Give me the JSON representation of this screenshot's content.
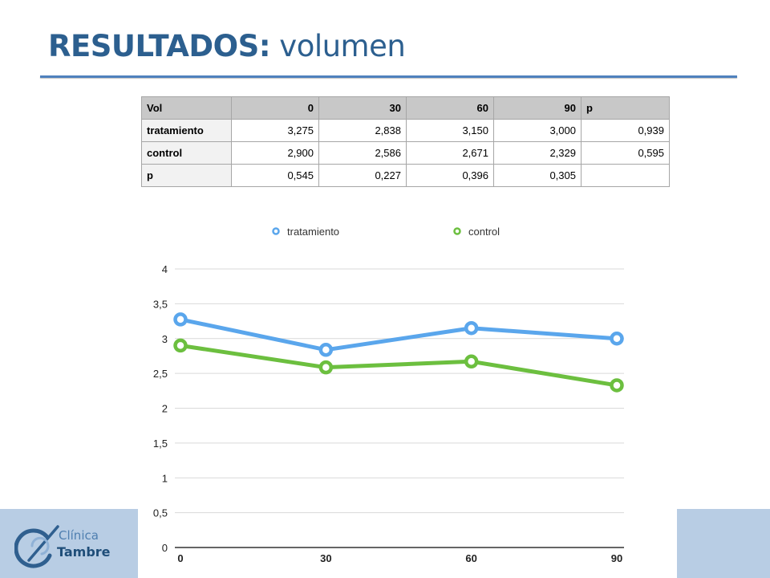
{
  "slide": {
    "title_strong": "RESULTADOS:",
    "title_light": "volumen"
  },
  "table": {
    "header": [
      "Vol",
      "0",
      "30",
      "60",
      "90",
      "p"
    ],
    "rows": [
      {
        "label": "tratamiento",
        "cells": [
          "3,275",
          "2,838",
          "3,150",
          "3,000",
          "0,939"
        ]
      },
      {
        "label": "control",
        "cells": [
          "2,900",
          "2,586",
          "2,671",
          "2,329",
          "0,595"
        ]
      },
      {
        "label": "p",
        "cells": [
          "0,545",
          "0,227",
          "0,396",
          "0,305",
          ""
        ]
      }
    ]
  },
  "logo": {
    "line1": "Clínica",
    "line2": "Tambre"
  },
  "chart_data": {
    "type": "line",
    "title": "",
    "xlabel": "",
    "ylabel": "",
    "categories": [
      "0",
      "30",
      "60",
      "90"
    ],
    "x_tick_labels": [
      "0",
      "30",
      "60",
      "90"
    ],
    "y_tick_labels": [
      "0",
      "0,5",
      "1",
      "1,5",
      "2",
      "2,5",
      "3",
      "3,5",
      "4"
    ],
    "ylim": [
      0,
      4
    ],
    "grid": true,
    "legend_position": "top-center",
    "series": [
      {
        "name": "tratamiento",
        "color": "#5aa6ec",
        "values": [
          3.275,
          2.838,
          3.15,
          3.0
        ]
      },
      {
        "name": "control",
        "color": "#6cbf3f",
        "values": [
          2.9,
          2.586,
          2.671,
          2.329
        ]
      }
    ]
  }
}
